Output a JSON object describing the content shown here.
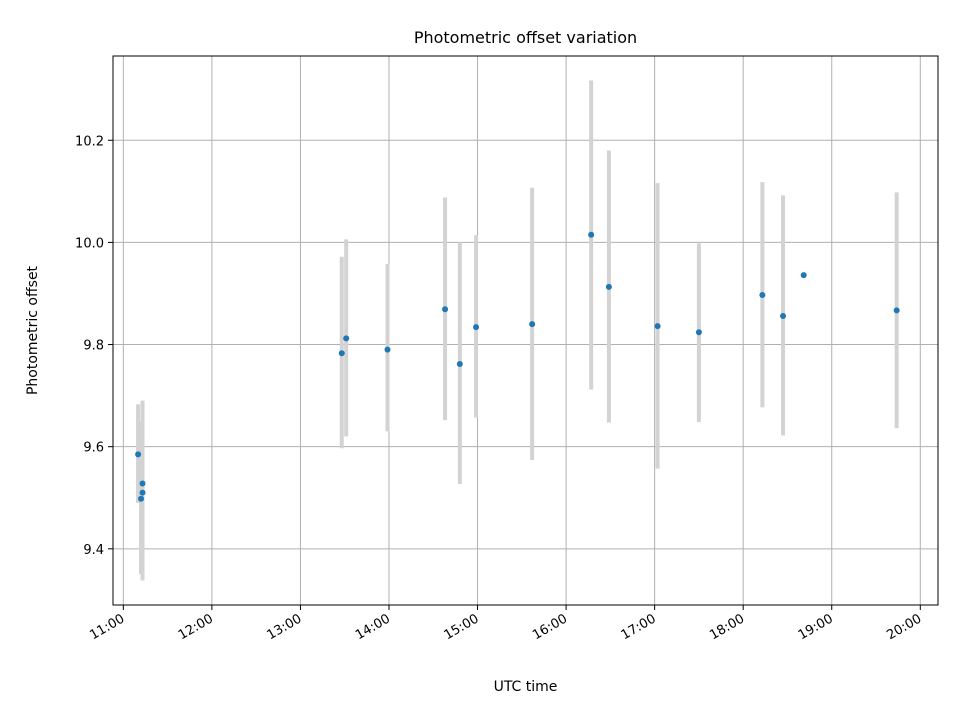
{
  "chart_data": {
    "type": "scatter",
    "title": "Photometric offset variation",
    "xlabel": "UTC time",
    "ylabel": "Photometric offset",
    "xlim": [
      "10:53",
      "20:12"
    ],
    "ylim": [
      9.29,
      10.365
    ],
    "x_ticks": [
      "11:00",
      "12:00",
      "13:00",
      "14:00",
      "15:00",
      "16:00",
      "17:00",
      "18:00",
      "19:00",
      "20:00"
    ],
    "y_ticks": [
      "9.4",
      "9.6",
      "9.8",
      "10.0",
      "10.2"
    ],
    "grid": true,
    "colors": {
      "points": "#1f77b4",
      "errorbars": "#d3d3d3",
      "grid": "#b0b0b0"
    },
    "series": [
      {
        "points": [
          {
            "x": "11:10",
            "y": 9.585,
            "ylo": 9.49,
            "yhi": 9.683
          },
          {
            "x": "11:12",
            "y": 9.498,
            "ylo": 9.35,
            "yhi": 9.65
          },
          {
            "x": "11:13",
            "y": 9.528,
            "ylo": 9.36,
            "yhi": 9.69
          },
          {
            "x": "11:13",
            "y": 9.51,
            "ylo": 9.338,
            "yhi": 9.69
          },
          {
            "x": "13:28",
            "y": 9.783,
            "ylo": 9.597,
            "yhi": 9.972
          },
          {
            "x": "13:31",
            "y": 9.812,
            "ylo": 9.62,
            "yhi": 10.006
          },
          {
            "x": "13:59",
            "y": 9.79,
            "ylo": 9.63,
            "yhi": 9.958
          },
          {
            "x": "14:38",
            "y": 9.869,
            "ylo": 9.652,
            "yhi": 10.088
          },
          {
            "x": "14:48",
            "y": 9.762,
            "ylo": 9.527,
            "yhi": 10.0
          },
          {
            "x": "14:59",
            "y": 9.834,
            "ylo": 9.657,
            "yhi": 10.014
          },
          {
            "x": "15:37",
            "y": 9.84,
            "ylo": 9.574,
            "yhi": 10.107
          },
          {
            "x": "16:17",
            "y": 10.015,
            "ylo": 9.712,
            "yhi": 10.317
          },
          {
            "x": "16:29",
            "y": 9.913,
            "ylo": 9.647,
            "yhi": 10.18
          },
          {
            "x": "17:02",
            "y": 9.836,
            "ylo": 9.557,
            "yhi": 10.116
          },
          {
            "x": "17:30",
            "y": 9.824,
            "ylo": 9.648,
            "yhi": 9.998
          },
          {
            "x": "18:13",
            "y": 9.897,
            "ylo": 9.677,
            "yhi": 10.118
          },
          {
            "x": "18:27",
            "y": 9.856,
            "ylo": 9.622,
            "yhi": 10.092
          },
          {
            "x": "18:41",
            "y": 9.936,
            "ylo": 9.936,
            "yhi": 9.936
          },
          {
            "x": "19:44",
            "y": 9.867,
            "ylo": 9.636,
            "yhi": 10.098
          }
        ]
      }
    ]
  }
}
